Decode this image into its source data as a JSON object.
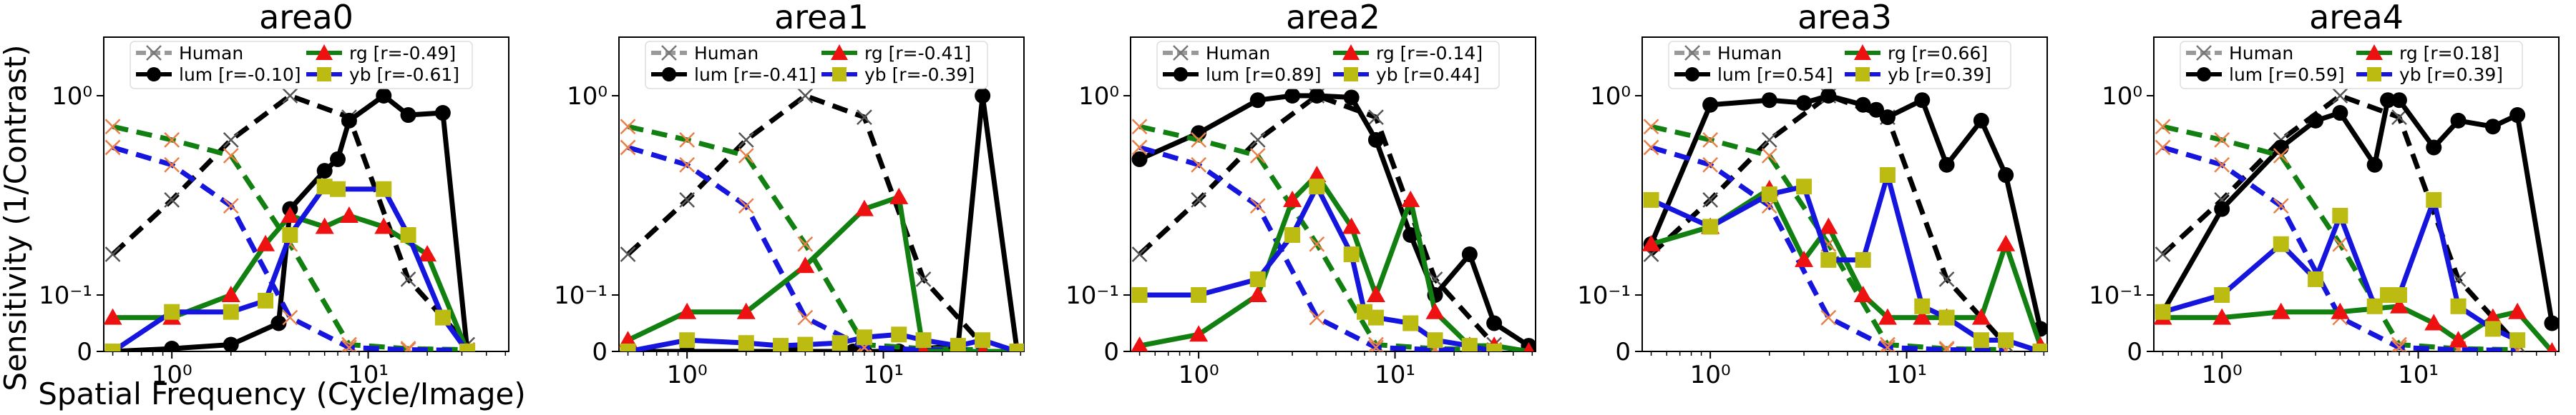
{
  "figure": {
    "ylabel": "Sensitivity (1/Contrast)",
    "xlabel": "Spatial Frequency (Cycle/Image)"
  },
  "legend_labels": {
    "human": "Human",
    "lum": "lum",
    "rg": "rg",
    "yb": "yb"
  },
  "colors": {
    "human": "#000000",
    "lum": "#000000",
    "rg": "#118011",
    "yb": "#1515dd",
    "rg_marker": "#ee1111",
    "yb_marker": "#bbbb11"
  },
  "chart_data": [
    {
      "type": "line",
      "title": "area0",
      "xscale": "log",
      "yscale": "symlog",
      "xlim": [
        0.45,
        52
      ],
      "ylim": [
        0,
        2.2
      ],
      "yticks": [
        "0",
        "10⁻¹",
        "10⁰"
      ],
      "xticks": [
        "10⁰",
        "10¹"
      ],
      "legend_position": "top-center",
      "r": {
        "lum": "[r=-0.10]",
        "rg": "[r=-0.49]",
        "yb": "[r=-0.61]"
      },
      "series": [
        {
          "name": "Human",
          "x": [
            0.5,
            1,
            2,
            4,
            8,
            16,
            32
          ],
          "y": [
            0.16,
            0.3,
            0.6,
            1.0,
            0.78,
            0.12,
            0.012
          ],
          "style": "dashed-x"
        },
        {
          "name": "lum",
          "x": [
            0.5,
            1,
            2,
            3.5,
            4,
            6,
            7,
            8,
            12,
            16,
            24,
            32
          ],
          "y": [
            0.0,
            0.005,
            0.012,
            0.05,
            0.27,
            0.42,
            0.48,
            0.75,
            1.0,
            0.8,
            0.82,
            0.0
          ],
          "style": "solid-o"
        },
        {
          "name": "rg human",
          "x": [
            0.5,
            1,
            2,
            4,
            8,
            16,
            32
          ],
          "y": [
            0.7,
            0.6,
            0.5,
            0.18,
            0.012,
            0.005,
            0.003
          ],
          "style": "dashed-x-green"
        },
        {
          "name": "yb human",
          "x": [
            0.5,
            1,
            2,
            4,
            8,
            16,
            32
          ],
          "y": [
            0.55,
            0.45,
            0.28,
            0.06,
            0.007,
            0.003,
            0.002
          ],
          "style": "dashed-x-blue"
        },
        {
          "name": "rg",
          "x": [
            0.5,
            1,
            2,
            3,
            4,
            6,
            8,
            12,
            20,
            32
          ],
          "y": [
            0.06,
            0.06,
            0.1,
            0.18,
            0.25,
            0.22,
            0.25,
            0.22,
            0.16,
            0.0
          ],
          "style": "solid-triangle"
        },
        {
          "name": "yb",
          "x": [
            0.5,
            1,
            2,
            3,
            4,
            6,
            7,
            12,
            16,
            24,
            32
          ],
          "y": [
            0.0,
            0.07,
            0.07,
            0.09,
            0.2,
            0.35,
            0.34,
            0.34,
            0.2,
            0.06,
            0.0
          ],
          "style": "solid-square"
        }
      ]
    },
    {
      "type": "line",
      "title": "area1",
      "xscale": "log",
      "yscale": "symlog",
      "xlim": [
        0.45,
        52
      ],
      "ylim": [
        0,
        2.2
      ],
      "yticks": [
        "0",
        "10⁻¹",
        "10⁰"
      ],
      "xticks": [
        "10⁰",
        "10¹"
      ],
      "legend_position": "top-center",
      "r": {
        "lum": "[r=-0.41]",
        "rg": "[r=-0.41]",
        "yb": "[r=-0.39]"
      },
      "series": [
        {
          "name": "Human",
          "x": [
            0.5,
            1,
            2,
            4,
            8,
            16,
            32
          ],
          "y": [
            0.16,
            0.3,
            0.6,
            1.0,
            0.78,
            0.12,
            0.012
          ],
          "style": "dashed-x"
        },
        {
          "name": "lum",
          "x": [
            0.5,
            1,
            2,
            3.5,
            4,
            6,
            7,
            8,
            12,
            16,
            24,
            32,
            48
          ],
          "y": [
            0.0,
            0.0,
            0.0,
            0.0,
            0.0,
            0.0,
            0.0,
            0.0,
            0.0,
            0.005,
            0.01,
            1.0,
            0.0
          ],
          "style": "solid-o"
        },
        {
          "name": "rg human",
          "x": [
            0.5,
            1,
            2,
            4,
            8,
            16,
            32
          ],
          "y": [
            0.7,
            0.6,
            0.5,
            0.18,
            0.012,
            0.005,
            0.003
          ],
          "style": "dashed-x-green"
        },
        {
          "name": "yb human",
          "x": [
            0.5,
            1,
            2,
            4,
            8,
            16,
            32
          ],
          "y": [
            0.55,
            0.45,
            0.28,
            0.06,
            0.007,
            0.003,
            0.002
          ],
          "style": "dashed-x-blue"
        },
        {
          "name": "rg",
          "x": [
            0.5,
            1,
            2,
            4,
            8,
            12,
            16,
            24,
            32,
            48
          ],
          "y": [
            0.02,
            0.07,
            0.07,
            0.14,
            0.27,
            0.31,
            0.0,
            0.0,
            0.0,
            0.0
          ],
          "style": "solid-triangle"
        },
        {
          "name": "yb",
          "x": [
            0.5,
            1,
            2,
            3,
            4,
            6,
            8,
            12,
            16,
            24,
            32,
            48
          ],
          "y": [
            0.0,
            0.02,
            0.015,
            0.01,
            0.012,
            0.015,
            0.025,
            0.03,
            0.02,
            0.01,
            0.02,
            0.0
          ],
          "style": "solid-square"
        }
      ]
    },
    {
      "type": "line",
      "title": "area2",
      "xscale": "log",
      "yscale": "symlog",
      "xlim": [
        0.45,
        52
      ],
      "ylim": [
        0,
        2.2
      ],
      "yticks": [
        "0",
        "10⁻¹",
        "10⁰"
      ],
      "xticks": [
        "10⁰",
        "10¹"
      ],
      "legend_position": "top-center",
      "r": {
        "lum": "[r=0.89]",
        "rg": "[r=-0.14]",
        "yb": "[r=0.44]"
      },
      "series": [
        {
          "name": "Human",
          "x": [
            0.5,
            1,
            2,
            4,
            8,
            16,
            32
          ],
          "y": [
            0.16,
            0.3,
            0.6,
            1.0,
            0.78,
            0.12,
            0.012
          ],
          "style": "dashed-x"
        },
        {
          "name": "lum",
          "x": [
            0.5,
            1,
            2,
            3,
            4,
            6,
            8,
            12,
            16,
            24,
            32,
            48
          ],
          "y": [
            0.48,
            0.65,
            0.95,
            1.0,
            1.0,
            0.98,
            0.6,
            0.2,
            0.1,
            0.16,
            0.05,
            0.01
          ],
          "style": "solid-o"
        },
        {
          "name": "rg human",
          "x": [
            0.5,
            1,
            2,
            4,
            8,
            16,
            32
          ],
          "y": [
            0.7,
            0.6,
            0.5,
            0.18,
            0.012,
            0.005,
            0.003
          ],
          "style": "dashed-x-green"
        },
        {
          "name": "yb human",
          "x": [
            0.5,
            1,
            2,
            4,
            8,
            16,
            32
          ],
          "y": [
            0.55,
            0.45,
            0.28,
            0.06,
            0.007,
            0.003,
            0.002
          ],
          "style": "dashed-x-blue"
        },
        {
          "name": "rg",
          "x": [
            0.5,
            1,
            2,
            3,
            4,
            6,
            8,
            12,
            16,
            24,
            32,
            48
          ],
          "y": [
            0.01,
            0.03,
            0.1,
            0.3,
            0.4,
            0.22,
            0.1,
            0.3,
            0.07,
            0.01,
            0.01,
            0.0
          ],
          "style": "solid-triangle"
        },
        {
          "name": "yb",
          "x": [
            0.5,
            1,
            2,
            3,
            4,
            6,
            7,
            8,
            12,
            16,
            24,
            32
          ],
          "y": [
            0.1,
            0.1,
            0.12,
            0.2,
            0.35,
            0.16,
            0.07,
            0.06,
            0.05,
            0.02,
            0.01,
            0.0
          ],
          "style": "solid-square"
        }
      ]
    },
    {
      "type": "line",
      "title": "area3",
      "xscale": "log",
      "yscale": "symlog",
      "xlim": [
        0.45,
        52
      ],
      "ylim": [
        0,
        2.2
      ],
      "yticks": [
        "0",
        "10⁻¹",
        "10⁰"
      ],
      "xticks": [
        "10⁰",
        "10¹"
      ],
      "legend_position": "top-center",
      "r": {
        "lum": "[r=0.54]",
        "rg": "[r=0.66]",
        "yb": "[r=0.39]"
      },
      "series": [
        {
          "name": "Human",
          "x": [
            0.5,
            1,
            2,
            4,
            8,
            16,
            32
          ],
          "y": [
            0.16,
            0.3,
            0.6,
            1.0,
            0.78,
            0.12,
            0.012
          ],
          "style": "dashed-x"
        },
        {
          "name": "lum",
          "x": [
            0.5,
            1,
            2,
            3,
            4,
            6,
            7,
            8,
            12,
            16,
            24,
            32,
            48
          ],
          "y": [
            0.18,
            0.9,
            0.95,
            0.92,
            1.0,
            0.9,
            0.85,
            0.78,
            0.95,
            0.45,
            0.75,
            0.4,
            0.04
          ],
          "style": "solid-o"
        },
        {
          "name": "rg human",
          "x": [
            0.5,
            1,
            2,
            4,
            8,
            16,
            32
          ],
          "y": [
            0.7,
            0.6,
            0.5,
            0.18,
            0.012,
            0.005,
            0.003
          ],
          "style": "dashed-x-green"
        },
        {
          "name": "yb human",
          "x": [
            0.5,
            1,
            2,
            4,
            8,
            16,
            32
          ],
          "y": [
            0.55,
            0.45,
            0.28,
            0.06,
            0.007,
            0.003,
            0.002
          ],
          "style": "dashed-x-blue"
        },
        {
          "name": "rg",
          "x": [
            0.5,
            1,
            2,
            3,
            4,
            6,
            8,
            12,
            16,
            24,
            32,
            48
          ],
          "y": [
            0.18,
            0.22,
            0.34,
            0.15,
            0.22,
            0.1,
            0.06,
            0.06,
            0.06,
            0.06,
            0.18,
            0.01
          ],
          "style": "solid-triangle"
        },
        {
          "name": "yb",
          "x": [
            0.5,
            1,
            2,
            3,
            4,
            6,
            8,
            12,
            16,
            24,
            32,
            48
          ],
          "y": [
            0.3,
            0.22,
            0.32,
            0.35,
            0.15,
            0.15,
            0.4,
            0.08,
            0.06,
            0.02,
            0.02,
            0.0
          ],
          "style": "solid-square"
        }
      ]
    },
    {
      "type": "line",
      "title": "area4",
      "xscale": "log",
      "yscale": "symlog",
      "xlim": [
        0.45,
        52
      ],
      "ylim": [
        0,
        2.2
      ],
      "yticks": [
        "0",
        "10⁻¹",
        "10⁰"
      ],
      "xticks": [
        "10⁰",
        "10¹"
      ],
      "legend_position": "top-center",
      "r": {
        "lum": "[r=0.59]",
        "rg": "[r=0.18]",
        "yb": "[r=0.39]"
      },
      "series": [
        {
          "name": "Human",
          "x": [
            0.5,
            1,
            2,
            4,
            8,
            16,
            32
          ],
          "y": [
            0.16,
            0.3,
            0.6,
            1.0,
            0.78,
            0.12,
            0.012
          ],
          "style": "dashed-x"
        },
        {
          "name": "lum",
          "x": [
            0.5,
            1,
            2,
            3,
            4,
            6,
            7,
            8,
            12,
            16,
            24,
            32,
            48
          ],
          "y": [
            0.07,
            0.27,
            0.55,
            0.75,
            0.82,
            0.45,
            0.95,
            0.95,
            0.55,
            0.75,
            0.7,
            0.8,
            0.05
          ],
          "style": "solid-o"
        },
        {
          "name": "rg human",
          "x": [
            0.5,
            1,
            2,
            4,
            8,
            16,
            32
          ],
          "y": [
            0.7,
            0.6,
            0.5,
            0.18,
            0.012,
            0.005,
            0.003
          ],
          "style": "dashed-x-green"
        },
        {
          "name": "yb human",
          "x": [
            0.5,
            1,
            2,
            4,
            8,
            16,
            32
          ],
          "y": [
            0.55,
            0.45,
            0.28,
            0.06,
            0.007,
            0.003,
            0.002
          ],
          "style": "dashed-x-blue"
        },
        {
          "name": "rg",
          "x": [
            0.5,
            1,
            2,
            4,
            8,
            12,
            16,
            24,
            32,
            48
          ],
          "y": [
            0.06,
            0.06,
            0.07,
            0.07,
            0.08,
            0.05,
            0.02,
            0.06,
            0.07,
            0.0
          ],
          "style": "solid-triangle"
        },
        {
          "name": "yb",
          "x": [
            0.5,
            1,
            2,
            3,
            4,
            6,
            7,
            8,
            12,
            16,
            24,
            32
          ],
          "y": [
            0.07,
            0.1,
            0.18,
            0.12,
            0.25,
            0.08,
            0.1,
            0.1,
            0.3,
            0.08,
            0.04,
            0.02
          ],
          "style": "solid-square"
        }
      ]
    }
  ]
}
